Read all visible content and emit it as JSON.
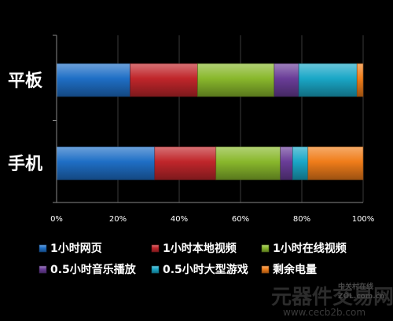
{
  "chart_data": {
    "type": "bar",
    "orientation": "horizontal",
    "stacked": "percent",
    "categories": [
      "平板",
      "手机"
    ],
    "series": [
      {
        "name": "1小时网页",
        "color": "#1f6fc6",
        "values": [
          24,
          32
        ]
      },
      {
        "name": "1小时本地视频",
        "color": "#c0262b",
        "values": [
          22,
          20
        ]
      },
      {
        "name": "1小时在线视频",
        "color": "#89b82c",
        "values": [
          25,
          21
        ]
      },
      {
        "name": "0.5小时音乐播放",
        "color": "#6a3d98",
        "values": [
          8,
          4
        ]
      },
      {
        "name": "0.5小时大型游戏",
        "color": "#1aa7c7",
        "values": [
          19,
          5
        ]
      },
      {
        "name": "剩余电量",
        "color": "#f07d1a",
        "values": [
          2,
          18
        ]
      }
    ],
    "xlim": [
      0,
      100
    ],
    "x_ticks": [
      "0%",
      "20%",
      "40%",
      "60%",
      "80%",
      "100%"
    ],
    "grid": true,
    "legend_position": "bottom"
  },
  "watermark": {
    "text": "元器件交易网",
    "logo_text": "中关村在线",
    "logo_sub": "ZOL.com.cn",
    "url": "www.cecb2b.com"
  }
}
